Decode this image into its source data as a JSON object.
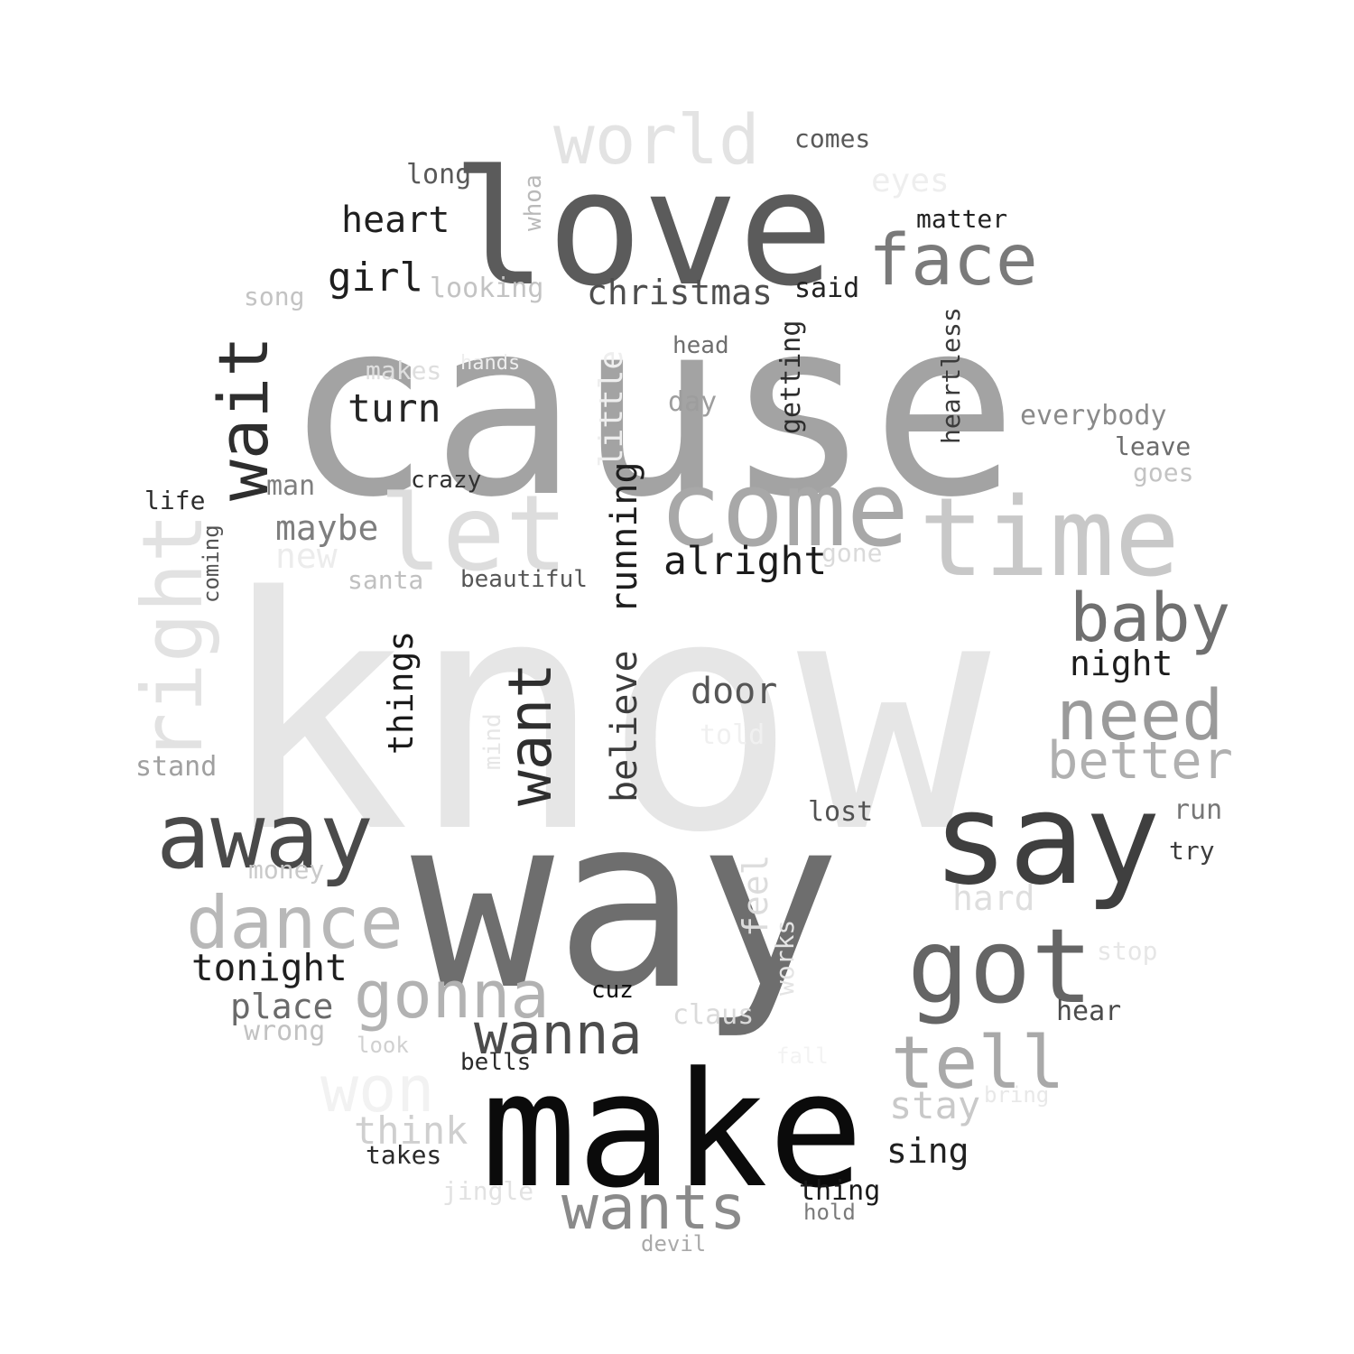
{
  "words": {
    "know": {
      "text": "know",
      "color": "#e6e6e6"
    },
    "cause": {
      "text": "cause",
      "color": "#a3a3a3"
    },
    "way": {
      "text": "way",
      "color": "#6e6e6e"
    },
    "make": {
      "text": "make",
      "color": "#0b0b0b"
    },
    "love": {
      "text": "love",
      "color": "#5b5b5b"
    },
    "time": {
      "text": "time",
      "color": "#c8c8c8"
    },
    "come": {
      "text": "come",
      "color": "#a8a8a8"
    },
    "let": {
      "text": "let",
      "color": "#dddddd"
    },
    "say": {
      "text": "say",
      "color": "#3f3f3f"
    },
    "got": {
      "text": "got",
      "color": "#656565"
    },
    "away": {
      "text": "away",
      "color": "#4a4a4a"
    },
    "world": {
      "text": "world",
      "color": "#e3e3e3"
    },
    "face": {
      "text": "face",
      "color": "#7a7a7a"
    },
    "right": {
      "text": "right",
      "color": "#e2e2e2"
    },
    "wait": {
      "text": "wait",
      "color": "#2e2e2e"
    },
    "dance": {
      "text": "dance",
      "color": "#b8b8b8"
    },
    "gonna": {
      "text": "gonna",
      "color": "#b2b2b2"
    },
    "tell": {
      "text": "tell",
      "color": "#a9a9a9"
    },
    "want": {
      "text": "want",
      "color": "#2f2f2f"
    },
    "baby": {
      "text": "baby",
      "color": "#6f6f6f"
    },
    "need": {
      "text": "need",
      "color": "#9a9a9a"
    },
    "better": {
      "text": "better",
      "color": "#b0b0b0"
    },
    "wanna": {
      "text": "wanna",
      "color": "#4c4c4c"
    },
    "wants": {
      "text": "wants",
      "color": "#8a8a8a"
    },
    "won": {
      "text": "won",
      "color": "#f2f2f2"
    },
    "heart": {
      "text": "heart",
      "color": "#1f1f1f"
    },
    "girl": {
      "text": "girl",
      "color": "#1e1e1e"
    },
    "turn": {
      "text": "turn",
      "color": "#252525"
    },
    "christmas": {
      "text": "christmas",
      "color": "#4e4e4e"
    },
    "alright": {
      "text": "alright",
      "color": "#1b1b1b"
    },
    "running": {
      "text": "running",
      "color": "#1e1e1e"
    },
    "believe": {
      "text": "believe",
      "color": "#3c3c3c"
    },
    "things": {
      "text": "things",
      "color": "#1a1a1a"
    },
    "door": {
      "text": "door",
      "color": "#565656"
    },
    "tonight": {
      "text": "tonight",
      "color": "#1f1f1f"
    },
    "place": {
      "text": "place",
      "color": "#6a6a6a"
    },
    "think": {
      "text": "think",
      "color": "#cfcfcf"
    },
    "stay": {
      "text": "stay",
      "color": "#c9c9c9"
    },
    "sing": {
      "text": "sing",
      "color": "#202020"
    },
    "night": {
      "text": "night",
      "color": "#1c1c1c"
    },
    "maybe": {
      "text": "maybe",
      "color": "#7e7e7e"
    },
    "hard": {
      "text": "hard",
      "color": "#dedede"
    },
    "feel": {
      "text": "feel",
      "color": "#dcdcdc"
    },
    "comes": {
      "text": "comes",
      "color": "#595959"
    },
    "eyes": {
      "text": "eyes",
      "color": "#eeeeee"
    },
    "matter": {
      "text": "matter",
      "color": "#222222"
    },
    "long": {
      "text": "long",
      "color": "#595959"
    },
    "whoa": {
      "text": "whoa",
      "color": "#b9b9b9"
    },
    "said": {
      "text": "said",
      "color": "#222222"
    },
    "looking": {
      "text": "looking",
      "color": "#c3c3c3"
    },
    "song": {
      "text": "song",
      "color": "#c3c3c3"
    },
    "head": {
      "text": "head",
      "color": "#6e6e6e"
    },
    "getting": {
      "text": "getting",
      "color": "#2c2c2c"
    },
    "heartless": {
      "text": "heartless",
      "color": "#3a3a3a"
    },
    "makes": {
      "text": "makes",
      "color": "#dedede"
    },
    "hands": {
      "text": "hands",
      "color": "#eeeeee"
    },
    "little": {
      "text": "little",
      "color": "#eeeeee"
    },
    "day": {
      "text": "day",
      "color": "#9d9d9d"
    },
    "everybody": {
      "text": "everybody",
      "color": "#8a8a8a"
    },
    "leave": {
      "text": "leave",
      "color": "#6c6c6c"
    },
    "goes": {
      "text": "goes",
      "color": "#c3c3c3"
    },
    "man": {
      "text": "man",
      "color": "#7f7f7f"
    },
    "crazy": {
      "text": "crazy",
      "color": "#303030"
    },
    "life": {
      "text": "life",
      "color": "#2d2d2d"
    },
    "coming": {
      "text": "coming",
      "color": "#545454"
    },
    "new": {
      "text": "new",
      "color": "#ececec"
    },
    "santa": {
      "text": "santa",
      "color": "#c0c0c0"
    },
    "beautiful": {
      "text": "beautiful",
      "color": "#555555"
    },
    "gone": {
      "text": "gone",
      "color": "#dadada"
    },
    "mind": {
      "text": "mind",
      "color": "#e6e6e6"
    },
    "told": {
      "text": "told",
      "color": "#f0f0f0"
    },
    "stand": {
      "text": "stand",
      "color": "#a0a0a0"
    },
    "lost": {
      "text": "lost",
      "color": "#525252"
    },
    "run": {
      "text": "run",
      "color": "#777777"
    },
    "try": {
      "text": "try",
      "color": "#3d3d3d"
    },
    "money": {
      "text": "money",
      "color": "#c9c9c9"
    },
    "works": {
      "text": "works",
      "color": "#e4e4e4"
    },
    "stop": {
      "text": "stop",
      "color": "#e6e6e6"
    },
    "cuz": {
      "text": "cuz",
      "color": "#101010"
    },
    "claus": {
      "text": "claus",
      "color": "#dadada"
    },
    "hear": {
      "text": "hear",
      "color": "#4b4b4b"
    },
    "wrong": {
      "text": "wrong",
      "color": "#c2c2c2"
    },
    "look": {
      "text": "look",
      "color": "#d0d0d0"
    },
    "bells": {
      "text": "bells",
      "color": "#2a2a2a"
    },
    "bring": {
      "text": "bring",
      "color": "#e8e8e8"
    },
    "fall": {
      "text": "fall",
      "color": "#f3f3f3"
    },
    "takes": {
      "text": "takes",
      "color": "#2a2a2a"
    },
    "jingle": {
      "text": "jingle",
      "color": "#e2e2e2"
    },
    "thing": {
      "text": "thing",
      "color": "#1a1a1a"
    },
    "hold": {
      "text": "hold",
      "color": "#7a7a7a"
    },
    "devil": {
      "text": "devil",
      "color": "#a9a9a9"
    }
  }
}
